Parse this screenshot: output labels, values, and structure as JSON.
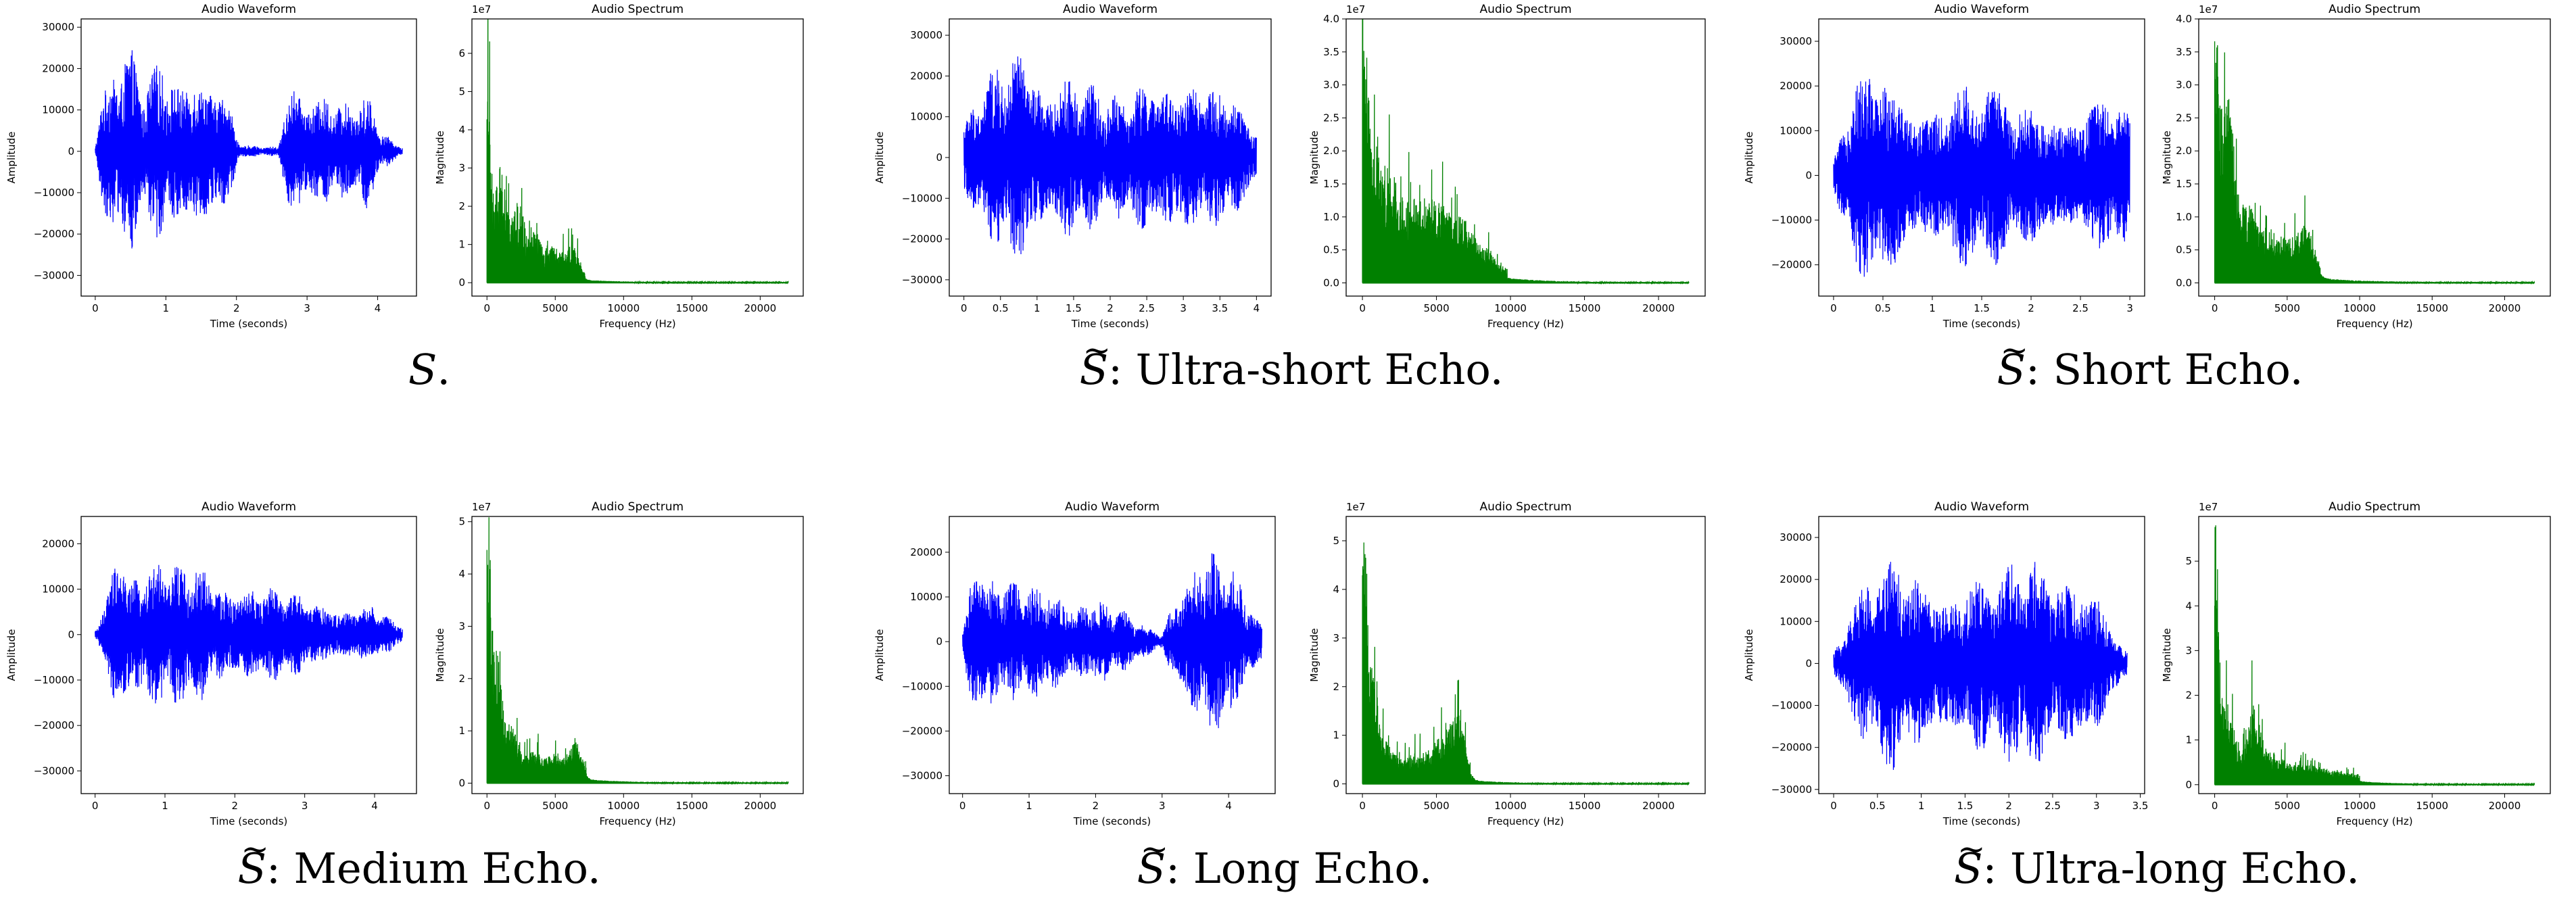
{
  "chart_data": [
    {
      "id": "S",
      "caption": {
        "symbol": "S",
        "tilde": false,
        "text": "."
      },
      "waveform": {
        "type": "line",
        "title": "Audio Waveform",
        "xlabel": "Time (seconds)",
        "ylabel": "Amplitude",
        "color": "#0000ff",
        "duration": 4.35,
        "xlim": [
          -0.2,
          4.55
        ],
        "ylim": [
          -35000,
          32000
        ],
        "xticks": [
          0,
          1,
          2,
          3,
          4
        ],
        "yticks": [
          -30000,
          -20000,
          -10000,
          0,
          10000,
          20000,
          30000
        ],
        "ytick_labels": [
          "−30000",
          "−20000",
          "−10000",
          "0",
          "10000",
          "20000",
          "30000"
        ],
        "envelope": [
          [
            0.0,
            0.05
          ],
          [
            0.1,
            0.7
          ],
          [
            0.3,
            0.85
          ],
          [
            0.5,
            0.9
          ],
          [
            0.7,
            0.55
          ],
          [
            0.95,
            0.8
          ],
          [
            1.2,
            0.6
          ],
          [
            1.45,
            0.95
          ],
          [
            1.7,
            0.7
          ],
          [
            1.95,
            0.35
          ],
          [
            2.05,
            0.05
          ],
          [
            2.6,
            0.04
          ],
          [
            2.75,
            0.75
          ],
          [
            3.0,
            0.6
          ],
          [
            3.3,
            0.55
          ],
          [
            3.55,
            0.4
          ],
          [
            3.85,
            0.5
          ],
          [
            4.0,
            0.25
          ],
          [
            4.3,
            0.05
          ]
        ],
        "peak": 30000
      },
      "spectrum": {
        "type": "area",
        "title": "Audio Spectrum",
        "xlabel": "Frequency (Hz)",
        "ylabel": "Magnitude",
        "color": "#008000",
        "exponent": "1e7",
        "xmax": 22050,
        "xlim": [
          -1100,
          23150
        ],
        "ylim": [
          -0.35,
          6.9
        ],
        "xticks": [
          0,
          5000,
          10000,
          15000,
          20000
        ],
        "yticks": [
          0,
          1,
          2,
          3,
          4,
          5,
          6
        ],
        "components": [
          [
            0,
            6.2,
            250
          ],
          [
            1000,
            2.9,
            450
          ],
          [
            2300,
            1.9,
            400
          ],
          [
            3500,
            1.1,
            500
          ],
          [
            5000,
            0.8,
            600
          ],
          [
            6300,
            0.75,
            400
          ]
        ],
        "cutoff": 7200
      }
    },
    {
      "id": "ultra-short",
      "caption": {
        "symbol": "S",
        "tilde": true,
        "text": ": Ultra-short Echo."
      },
      "waveform": {
        "type": "line",
        "title": "Audio Waveform",
        "xlabel": "Time (seconds)",
        "ylabel": "Amplitude",
        "color": "#0000ff",
        "duration": 4.0,
        "xlim": [
          -0.2,
          4.2
        ],
        "ylim": [
          -34000,
          34000
        ],
        "xticks": [
          0.0,
          0.5,
          1.0,
          1.5,
          2.0,
          2.5,
          3.0,
          3.5,
          4.0
        ],
        "yticks": [
          -30000,
          -20000,
          -10000,
          0,
          10000,
          20000,
          30000
        ],
        "ytick_labels": [
          "−30000",
          "−20000",
          "−10000",
          "0",
          "10000",
          "20000",
          "30000"
        ],
        "envelope": [
          [
            0.0,
            0.3
          ],
          [
            0.2,
            0.55
          ],
          [
            0.5,
            0.75
          ],
          [
            0.85,
            0.95
          ],
          [
            1.1,
            0.7
          ],
          [
            1.4,
            0.8
          ],
          [
            1.7,
            0.6
          ],
          [
            1.95,
            0.5
          ],
          [
            2.2,
            0.5
          ],
          [
            2.5,
            0.8
          ],
          [
            2.8,
            0.75
          ],
          [
            3.1,
            0.6
          ],
          [
            3.4,
            0.55
          ],
          [
            3.7,
            0.5
          ],
          [
            3.95,
            0.3
          ]
        ],
        "peak": 32000
      },
      "spectrum": {
        "type": "area",
        "title": "Audio Spectrum",
        "xlabel": "Frequency (Hz)",
        "ylabel": "Magnitude",
        "color": "#008000",
        "exponent": "1e7",
        "xmax": 22050,
        "xlim": [
          -1100,
          23150
        ],
        "ylim": [
          -0.2,
          4.0
        ],
        "xticks": [
          0,
          5000,
          10000,
          15000,
          20000
        ],
        "yticks": [
          0.0,
          0.5,
          1.0,
          1.5,
          2.0,
          2.5,
          3.0,
          3.5,
          4.0
        ],
        "ytick_labels": [
          "0.0",
          "0.5",
          "1.0",
          "1.5",
          "2.0",
          "2.5",
          "3.0",
          "3.5",
          "4.0"
        ],
        "components": [
          [
            0,
            3.6,
            300
          ],
          [
            800,
            1.9,
            500
          ],
          [
            2000,
            1.3,
            600
          ],
          [
            3500,
            0.9,
            700
          ],
          [
            5200,
            1.0,
            900
          ],
          [
            7000,
            0.6,
            700
          ],
          [
            8500,
            0.25,
            500
          ]
        ],
        "cutoff": 9800
      }
    },
    {
      "id": "short",
      "caption": {
        "symbol": "S",
        "tilde": true,
        "text": ": Short Echo."
      },
      "waveform": {
        "type": "line",
        "title": "Audio Waveform",
        "xlabel": "Time (seconds)",
        "ylabel": "Amplitude",
        "color": "#0000ff",
        "duration": 3.0,
        "xlim": [
          -0.15,
          3.15
        ],
        "ylim": [
          -27000,
          35000
        ],
        "xticks": [
          0.0,
          0.5,
          1.0,
          1.5,
          2.0,
          2.5,
          3.0
        ],
        "yticks": [
          -20000,
          -10000,
          0,
          10000,
          20000,
          30000
        ],
        "ytick_labels": [
          "−20000",
          "−10000",
          "0",
          "10000",
          "20000",
          "30000"
        ],
        "envelope": [
          [
            0.0,
            0.1
          ],
          [
            0.15,
            0.6
          ],
          [
            0.35,
            0.8
          ],
          [
            0.5,
            0.95
          ],
          [
            0.75,
            0.7
          ],
          [
            1.0,
            0.6
          ],
          [
            1.3,
            0.7
          ],
          [
            1.6,
            0.65
          ],
          [
            1.9,
            0.55
          ],
          [
            2.2,
            0.6
          ],
          [
            2.5,
            0.55
          ],
          [
            2.8,
            0.65
          ],
          [
            3.0,
            0.45
          ]
        ],
        "peak": 32000
      },
      "spectrum": {
        "type": "area",
        "title": "Audio Spectrum",
        "xlabel": "Frequency (Hz)",
        "ylabel": "Magnitude",
        "color": "#008000",
        "exponent": "1e7",
        "xmax": 22050,
        "xlim": [
          -1100,
          23150
        ],
        "ylim": [
          -0.2,
          4.0
        ],
        "xticks": [
          0,
          5000,
          10000,
          15000,
          20000
        ],
        "yticks": [
          0.0,
          0.5,
          1.0,
          1.5,
          2.0,
          2.5,
          3.0,
          3.5,
          4.0
        ],
        "ytick_labels": [
          "0.0",
          "0.5",
          "1.0",
          "1.5",
          "2.0",
          "2.5",
          "3.0",
          "3.5",
          "4.0"
        ],
        "components": [
          [
            0,
            3.6,
            300
          ],
          [
            900,
            2.6,
            450
          ],
          [
            2200,
            1.0,
            500
          ],
          [
            3500,
            0.55,
            600
          ],
          [
            5000,
            0.5,
            700
          ],
          [
            6300,
            0.6,
            500
          ]
        ],
        "cutoff": 7300
      }
    },
    {
      "id": "medium",
      "caption": {
        "symbol": "S",
        "tilde": true,
        "text": ": Medium Echo."
      },
      "waveform": {
        "type": "line",
        "title": "Audio Waveform",
        "xlabel": "Time (seconds)",
        "ylabel": "Amplitude",
        "color": "#0000ff",
        "duration": 4.4,
        "xlim": [
          -0.2,
          4.6
        ],
        "ylim": [
          -35000,
          26000
        ],
        "xticks": [
          0,
          1,
          2,
          3,
          4
        ],
        "yticks": [
          -30000,
          -20000,
          -10000,
          0,
          10000,
          20000
        ],
        "ytick_labels": [
          "−30000",
          "−20000",
          "−10000",
          "0",
          "10000",
          "20000"
        ],
        "envelope": [
          [
            0.0,
            0.05
          ],
          [
            0.15,
            0.3
          ],
          [
            0.3,
            1.0
          ],
          [
            0.6,
            0.8
          ],
          [
            0.9,
            0.75
          ],
          [
            1.2,
            0.65
          ],
          [
            1.5,
            0.7
          ],
          [
            1.8,
            0.6
          ],
          [
            2.1,
            0.55
          ],
          [
            2.4,
            0.5
          ],
          [
            2.8,
            0.4
          ],
          [
            3.2,
            0.35
          ],
          [
            3.6,
            0.3
          ],
          [
            4.0,
            0.3
          ],
          [
            4.3,
            0.1
          ]
        ],
        "peak": 24000
      },
      "spectrum": {
        "type": "area",
        "title": "Audio Spectrum",
        "xlabel": "Frequency (Hz)",
        "ylabel": "Magnitude",
        "color": "#008000",
        "exponent": "1e7",
        "xmax": 22050,
        "xlim": [
          -1100,
          23150
        ],
        "ylim": [
          -0.2,
          5.1
        ],
        "xticks": [
          0,
          5000,
          10000,
          15000,
          20000
        ],
        "yticks": [
          0,
          1,
          2,
          3,
          4,
          5
        ],
        "components": [
          [
            0,
            4.8,
            250
          ],
          [
            700,
            2.3,
            400
          ],
          [
            1800,
            0.9,
            400
          ],
          [
            3200,
            0.4,
            600
          ],
          [
            5000,
            0.4,
            800
          ],
          [
            6500,
            0.55,
            400
          ]
        ],
        "cutoff": 7300
      }
    },
    {
      "id": "long",
      "caption": {
        "symbol": "S",
        "tilde": true,
        "text": ": Long Echo."
      },
      "waveform": {
        "type": "line",
        "title": "Audio Waveform",
        "xlabel": "Time (seconds)",
        "ylabel": "Amplitude",
        "color": "#0000ff",
        "duration": 4.5,
        "xlim": [
          -0.2,
          4.7
        ],
        "ylim": [
          -34000,
          28000
        ],
        "xticks": [
          0,
          1,
          2,
          3,
          4
        ],
        "yticks": [
          -30000,
          -20000,
          -10000,
          0,
          10000,
          20000
        ],
        "ytick_labels": [
          "−30000",
          "−20000",
          "−10000",
          "0",
          "10000",
          "20000"
        ],
        "envelope": [
          [
            0.0,
            0.1
          ],
          [
            0.15,
            1.0
          ],
          [
            0.4,
            0.7
          ],
          [
            0.7,
            0.55
          ],
          [
            1.0,
            0.5
          ],
          [
            1.3,
            0.55
          ],
          [
            1.6,
            0.45
          ],
          [
            1.9,
            0.45
          ],
          [
            2.2,
            0.35
          ],
          [
            2.6,
            0.2
          ],
          [
            3.0,
            0.08
          ],
          [
            3.1,
            0.4
          ],
          [
            3.4,
            0.7
          ],
          [
            3.7,
            0.85
          ],
          [
            4.0,
            0.75
          ],
          [
            4.3,
            0.4
          ],
          [
            4.5,
            0.2
          ]
        ],
        "peak": 26000
      },
      "spectrum": {
        "type": "area",
        "title": "Audio Spectrum",
        "xlabel": "Frequency (Hz)",
        "ylabel": "Magnitude",
        "color": "#008000",
        "exponent": "1e7",
        "xmax": 22050,
        "xlim": [
          -1100,
          23150
        ],
        "ylim": [
          -0.2,
          5.5
        ],
        "xticks": [
          0,
          5000,
          10000,
          15000,
          20000
        ],
        "yticks": [
          0,
          1,
          2,
          3,
          4,
          5
        ],
        "components": [
          [
            0,
            5.2,
            280
          ],
          [
            700,
            1.9,
            400
          ],
          [
            1800,
            0.6,
            500
          ],
          [
            3500,
            0.4,
            700
          ],
          [
            5500,
            0.8,
            800
          ],
          [
            6500,
            0.95,
            400
          ]
        ],
        "cutoff": 7300
      }
    },
    {
      "id": "ultra-long",
      "caption": {
        "symbol": "S",
        "tilde": true,
        "text": ": Ultra-long Echo."
      },
      "waveform": {
        "type": "line",
        "title": "Audio Waveform",
        "xlabel": "Time (seconds)",
        "ylabel": "Amplitude",
        "color": "#0000ff",
        "duration": 3.35,
        "xlim": [
          -0.17,
          3.55
        ],
        "ylim": [
          -31000,
          35000
        ],
        "xticks": [
          0.0,
          0.5,
          1.0,
          1.5,
          2.0,
          2.5,
          3.0,
          3.5
        ],
        "yticks": [
          -30000,
          -20000,
          -10000,
          0,
          10000,
          20000,
          30000
        ],
        "ytick_labels": [
          "−30000",
          "−20000",
          "−10000",
          "0",
          "10000",
          "20000",
          "30000"
        ],
        "envelope": [
          [
            0.0,
            0.1
          ],
          [
            0.2,
            0.5
          ],
          [
            0.45,
            0.75
          ],
          [
            0.7,
            0.85
          ],
          [
            1.0,
            0.7
          ],
          [
            1.3,
            0.75
          ],
          [
            1.6,
            0.8
          ],
          [
            1.9,
            0.7
          ],
          [
            2.2,
            0.85
          ],
          [
            2.5,
            0.75
          ],
          [
            2.8,
            0.9
          ],
          [
            3.05,
            0.6
          ],
          [
            3.3,
            0.1
          ]
        ],
        "peak": 32000
      },
      "spectrum": {
        "type": "area",
        "title": "Audio Spectrum",
        "xlabel": "Frequency (Hz)",
        "ylabel": "Magnitude",
        "color": "#008000",
        "exponent": "1e7",
        "xmax": 22050,
        "xlim": [
          -1100,
          23150
        ],
        "ylim": [
          -0.2,
          6.0
        ],
        "xticks": [
          0,
          5000,
          10000,
          15000,
          20000
        ],
        "yticks": [
          0,
          1,
          2,
          3,
          4,
          5
        ],
        "components": [
          [
            0,
            5.5,
            260
          ],
          [
            900,
            1.6,
            500
          ],
          [
            2700,
            1.6,
            450
          ],
          [
            4200,
            0.5,
            800
          ],
          [
            6500,
            0.25,
            900
          ],
          [
            8500,
            0.1,
            800
          ]
        ],
        "cutoff": 10000
      }
    }
  ]
}
